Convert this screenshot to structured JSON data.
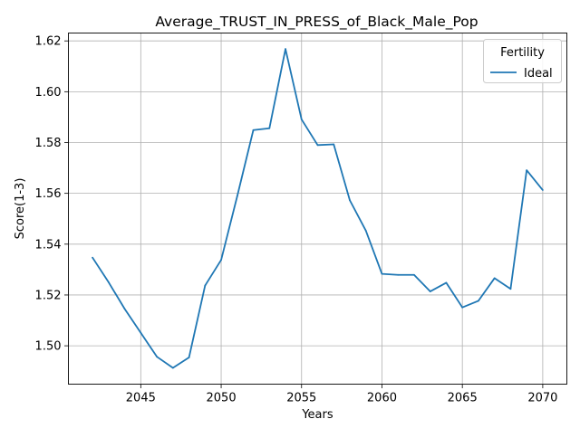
{
  "chart_data": {
    "type": "line",
    "title": "Average_TRUST_IN_PRESS_of_Black_Male_Pop",
    "xlabel": "Years",
    "ylabel": "Score(1-3)",
    "xlim": [
      2040.5,
      2071.5
    ],
    "ylim": [
      1.4849,
      1.6231
    ],
    "xticks": [
      2045,
      2050,
      2055,
      2060,
      2065,
      2070
    ],
    "xtick_labels": [
      "2045",
      "2050",
      "2055",
      "2060",
      "2065",
      "2070"
    ],
    "yticks": [
      1.5,
      1.52,
      1.54,
      1.56,
      1.58,
      1.6,
      1.62
    ],
    "ytick_labels": [
      "1.50",
      "1.52",
      "1.54",
      "1.56",
      "1.58",
      "1.60",
      "1.62"
    ],
    "grid": true,
    "legend": {
      "title": "Fertility",
      "placement": "upper right"
    },
    "series": [
      {
        "name": "Ideal",
        "color": "#1f77b4",
        "x": [
          2042,
          2043,
          2044,
          2045,
          2046,
          2047,
          2048,
          2049,
          2050,
          2051,
          2052,
          2053,
          2054,
          2055,
          2056,
          2057,
          2058,
          2059,
          2060,
          2061,
          2062,
          2063,
          2064,
          2065,
          2066,
          2067,
          2068,
          2069,
          2070
        ],
        "values": [
          1.5347,
          1.525,
          1.5145,
          1.5051,
          1.4957,
          1.4913,
          1.4954,
          1.5237,
          1.5338,
          1.5589,
          1.5849,
          1.5856,
          1.6168,
          1.5891,
          1.579,
          1.5793,
          1.5573,
          1.5453,
          1.5283,
          1.5279,
          1.5279,
          1.5214,
          1.5248,
          1.5151,
          1.5177,
          1.5266,
          1.5224,
          1.5691,
          1.5613
        ]
      }
    ]
  }
}
